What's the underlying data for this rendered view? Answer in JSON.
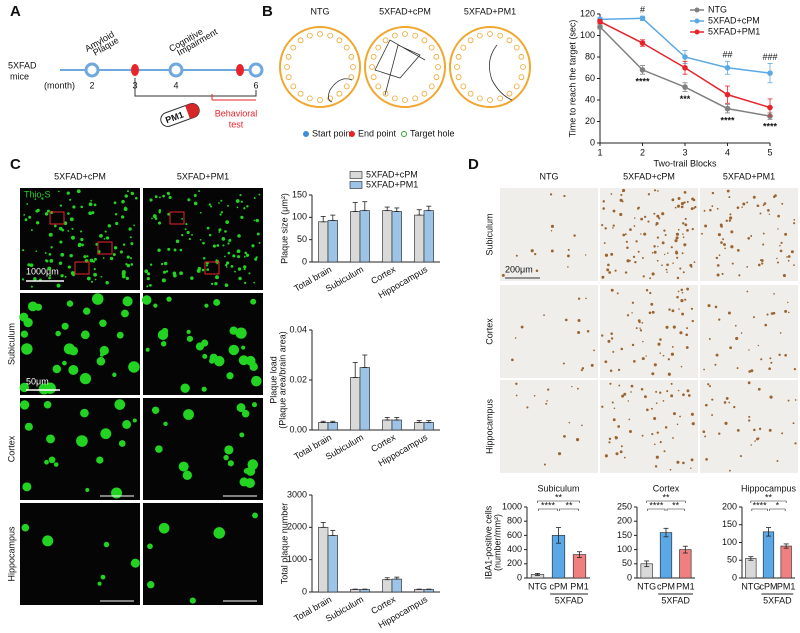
{
  "panel_labels": [
    "A",
    "B",
    "C",
    "D"
  ],
  "timeline": {
    "mouse": [
      "5XFAD",
      "mice"
    ],
    "unit": "(month)",
    "months": [
      "2",
      "3",
      "4",
      "6"
    ],
    "events": [
      [
        "Amyloid",
        "Plaque"
      ],
      [
        "Cognitive",
        "Impairment"
      ]
    ],
    "drug": "PM1",
    "test": [
      "Behavioral",
      "test"
    ]
  },
  "maze": {
    "titles": [
      "NTG",
      "5XFAD+cPM",
      "5XFAD+PM1"
    ],
    "legend": [
      "Start point",
      "End point",
      "Target hole"
    ]
  },
  "micrographs_c": {
    "columns": [
      "5XFAD+cPM",
      "5XFAD+PM1"
    ],
    "stain": "Thio-S",
    "scale_bars": [
      "1000μm",
      "50μm"
    ],
    "rows": [
      "Subiculum",
      "Cortex",
      "Hippocampus"
    ]
  },
  "micrographs_d": {
    "columns": [
      "NTG",
      "5XFAD+cPM",
      "5XFAD+PM1"
    ],
    "rows": [
      "Subiculum",
      "Cortex",
      "Hippocampus"
    ],
    "scale_bar": "200μm"
  },
  "chart_data": [
    {
      "type": "line",
      "xlabel": "Two-trail Blocks",
      "ylabel": "Time to reach the target (sec)",
      "x": [
        1,
        2,
        3,
        4,
        5
      ],
      "xlim": [
        1,
        5
      ],
      "xticks": [
        1,
        2,
        3,
        4,
        5
      ],
      "ylim": [
        0,
        120
      ],
      "yticks": [
        0,
        20,
        40,
        60,
        80,
        100,
        120
      ],
      "legend": "upper right",
      "series": [
        {
          "name": "NTG",
          "color": "#808080",
          "values": [
            108,
            68,
            52,
            32,
            25
          ],
          "errors": [
            2,
            4,
            4,
            4,
            3
          ]
        },
        {
          "name": "5XFAD+cPM",
          "color": "#5aa9e6",
          "values": [
            115,
            116,
            80,
            70,
            65
          ],
          "errors": [
            2,
            2,
            6,
            6,
            9
          ]
        },
        {
          "name": "5XFAD+PM1",
          "color": "#e8232a",
          "values": [
            113,
            93,
            70,
            45,
            33
          ],
          "errors": [
            2,
            3,
            6,
            8,
            8
          ]
        }
      ],
      "sig_above": [
        null,
        "#",
        null,
        "##",
        "###"
      ],
      "sig_below": [
        null,
        "****",
        "***",
        "****",
        "****"
      ]
    },
    {
      "type": "bar",
      "ylabel": "Plaque size (μm²)",
      "categories": [
        "Total brain",
        "Subiculum",
        "Cortex",
        "Hippocampus"
      ],
      "ylim": [
        0,
        150
      ],
      "yticks": [
        0,
        50,
        100,
        150
      ],
      "series": [
        {
          "name": "5XFAD+cPM",
          "color": "#d9d9d9",
          "values": [
            90,
            113,
            115,
            105
          ],
          "errors": [
            12,
            20,
            8,
            12
          ]
        },
        {
          "name": "5XFAD+PM1",
          "color": "#9dc3e6",
          "values": [
            93,
            115,
            113,
            115
          ],
          "errors": [
            12,
            20,
            8,
            10
          ]
        }
      ]
    },
    {
      "type": "bar",
      "ylabel": [
        "Plaque load",
        "(Plaque area/brain area)"
      ],
      "categories": [
        "Total brain",
        "Subiculum",
        "Cortex",
        "Hippocampus"
      ],
      "ylim": [
        0,
        0.04
      ],
      "yticks": [
        {
          "value": 0,
          "label": "0.00"
        },
        {
          "value": 0.02,
          "label": "0.02"
        },
        {
          "value": 0.04,
          "label": "0.04"
        }
      ],
      "series": [
        {
          "color": "#d9d9d9",
          "values": [
            0.003,
            0.021,
            0.004,
            0.003
          ],
          "errors": [
            0.0005,
            0.006,
            0.001,
            0.0008
          ]
        },
        {
          "color": "#9dc3e6",
          "values": [
            0.003,
            0.025,
            0.004,
            0.003
          ],
          "errors": [
            0.0005,
            0.005,
            0.001,
            0.0008
          ]
        }
      ]
    },
    {
      "type": "bar",
      "ylabel": "Total plaque number",
      "categories": [
        "Total brain",
        "Subiculum",
        "Cortex",
        "Hippocampus"
      ],
      "ylim": [
        0,
        3000
      ],
      "yticks": [
        0,
        1000,
        2000,
        3000
      ],
      "series": [
        {
          "color": "#d9d9d9",
          "values": [
            2000,
            80,
            380,
            80
          ],
          "errors": [
            150,
            10,
            60,
            10
          ]
        },
        {
          "color": "#9dc3e6",
          "values": [
            1750,
            80,
            400,
            80
          ],
          "errors": [
            150,
            10,
            60,
            10
          ]
        }
      ]
    },
    {
      "type": "bar",
      "title": "Subiculum",
      "ylabel": [
        "IBA1-positive cells",
        "(number/mm²)"
      ],
      "categories": [
        "NTG",
        "cPM",
        "PM1"
      ],
      "group_label": "5XFAD",
      "colors": [
        "#d9d9d9",
        "#5aa9e6",
        "#f08080"
      ],
      "values": [
        50,
        600,
        330
      ],
      "errors": [
        15,
        110,
        40
      ],
      "ylim": [
        0,
        1000
      ],
      "yticks": [
        0,
        200,
        400,
        600,
        800,
        1000
      ],
      "brackets": [
        {
          "pair": [
            0,
            2
          ],
          "label": "**"
        },
        {
          "pair": [
            0,
            1
          ],
          "label": "****"
        },
        {
          "pair": [
            1,
            2
          ],
          "label": "**"
        }
      ]
    },
    {
      "type": "bar",
      "title": "Cortex",
      "categories": [
        "NTG",
        "cPM",
        "PM1"
      ],
      "group_label": "5XFAD",
      "colors": [
        "#d9d9d9",
        "#5aa9e6",
        "#f08080"
      ],
      "values": [
        50,
        160,
        100
      ],
      "errors": [
        10,
        15,
        12
      ],
      "ylim": [
        0,
        250
      ],
      "yticks": [
        0,
        50,
        100,
        150,
        200,
        250
      ],
      "brackets": [
        {
          "pair": [
            0,
            2
          ],
          "label": "**"
        },
        {
          "pair": [
            0,
            1
          ],
          "label": "****"
        },
        {
          "pair": [
            1,
            2
          ],
          "label": "**"
        }
      ]
    },
    {
      "type": "bar",
      "title": "Hippocampus",
      "categories": [
        "NTG",
        "cPM",
        "PM1"
      ],
      "group_label": "5XFAD",
      "colors": [
        "#d9d9d9",
        "#5aa9e6",
        "#f08080"
      ],
      "values": [
        55,
        130,
        90
      ],
      "errors": [
        5,
        12,
        6
      ],
      "ylim": [
        0,
        200
      ],
      "yticks": [
        0,
        50,
        100,
        150,
        200
      ],
      "brackets": [
        {
          "pair": [
            0,
            2
          ],
          "label": "**"
        },
        {
          "pair": [
            0,
            1
          ],
          "label": "****"
        },
        {
          "pair": [
            1,
            2
          ],
          "label": "*"
        }
      ]
    }
  ]
}
